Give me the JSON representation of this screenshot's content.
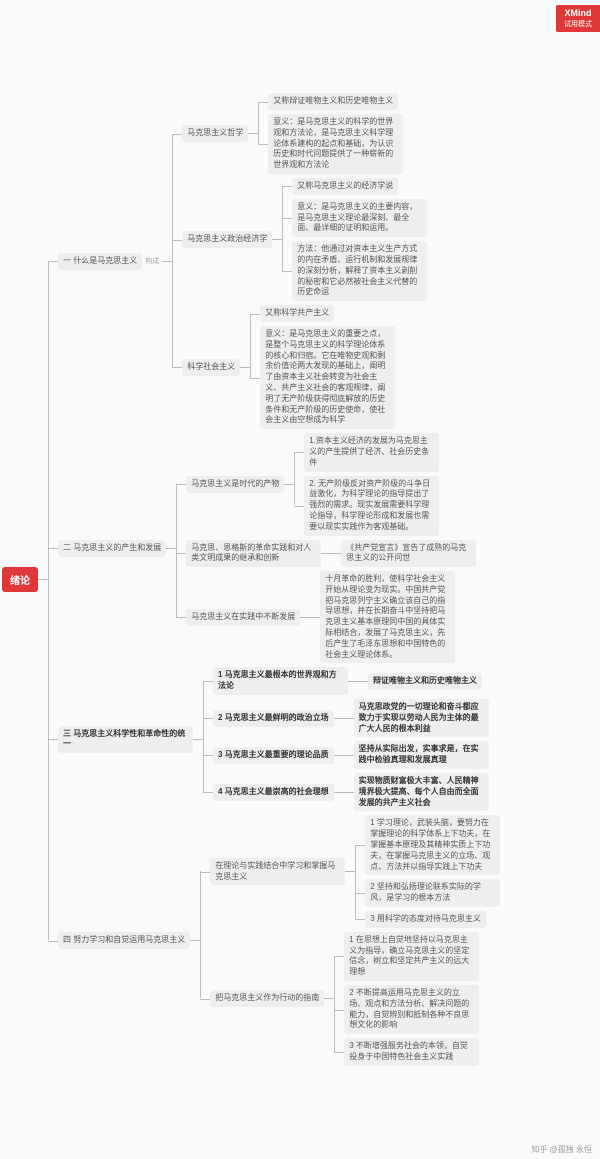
{
  "badge": {
    "title": "XMind",
    "sub": "试用模式"
  },
  "watermark": "知乎 @孤独 永恒",
  "root": "绪论",
  "t": {
    "s1": "一 什么是马克思主义",
    "s1tag": "构成",
    "s1a": "马克思主义哲学",
    "s1a1": "又称辩证唯物主义和历史唯物主义",
    "s1a2": "意义：是马克思主义的科学的世界观和方法论，是马克思主义科学理论体系建构的起点和基础，为认识历史和时代问题提供了一种崭新的世界观和方法论",
    "s1b": "马克思主义政治经济学",
    "s1b1": "又称马克思主义的经济学说",
    "s1b2": "意义：是马克思主义的主要内容，是马克思主义理论最深刻、最全面、最详细的证明和运用。",
    "s1b3": "方法：他通过对资本主义生产方式的内在矛盾、运行机制和发展规律的深刻分析，解释了资本主义剥削的秘密和它必然被社会主义代替的历史命运",
    "s1c": "科学社会主义",
    "s1c1": "又称科学共产主义",
    "s1c2": "意义：是马克思主义的重要之点，是整个马克思主义的科学理论体系的核心和归宿。它在唯物史观和剩余价值论两大发现的基础上，阐明了由资本主义社会转变为社会主义、共产主义社会的客观规律，阐明了无产阶级获得彻底解放的历史条件和无产阶级的历史使命，使社会主义由空想成为科学",
    "s2": "二 马克思主义的产生和发展",
    "s2a": "马克思主义是时代的产物",
    "s2a1": "1.资本主义经济的发展为马克思主义的产生提供了经济、社会历史条件",
    "s2a2": "2. 无产阶级反对资产阶级的斗争日益激化，为科学理论的指导提出了强烈的需求。现实发展需要科学理论指导，科学理论形成和发展也需要以现实实践作为客观基础。",
    "s2b": "马克思、恩格斯的革命实践和对人类文明成果的继承和创新",
    "s2b1": "《共产党宣言》宣告了成熟的马克思主义的公开问世",
    "s2c": "马克思主义在实践中不断发展",
    "s2c1": "十月革命的胜利，使科学社会主义开始从理论变为现实。中国共产党把马克思列宁主义确立该自己的指导思想，并在长期奋斗中坚持把马克思主义基本原理同中国的具体实际相结合，发展了马克思主义，先后产生了毛泽东思想和中国特色的社会主义理论体系。",
    "s3": "三 马克思主义科学性和革命性的统一",
    "s3a": "1 马克思主义最根本的世界观和方法论",
    "s3a1": "辩证唯物主义和历史唯物主义",
    "s3b": "2 马克思主义最鲜明的政治立场",
    "s3b1": "马克思政党的一切理论和奋斗都应致力于实现以劳动人民为主体的最广大人民的根本利益",
    "s3c": "3 马克思主义最重要的理论品质",
    "s3c1": "坚持从实际出发，实事求是，在实践中检验真理和发展真理",
    "s3d": "4 马克思主义最崇高的社会理想",
    "s3d1": "实现物质财富极大丰富、人民精神境界极大提高、每个人自由而全面发展的共产主义社会",
    "s4": "四 努力学习和自觉运用马克思主义",
    "s4a": "在理论与实践结合中学习和掌握马克思主义",
    "s4a1": "1 学习理论，武装头脑，要努力在掌握理论的科学体系上下功夫，在掌握基本原理及其精神实质上下功夫，在掌握马克思主义的立场、观点、方法并以指导实践上下功夫",
    "s4a2": "2 坚持和弘扬理论联系实际的学风，是学习的根本方法",
    "s4a3": "3 用科学的态度对待马克思主义",
    "s4b": "把马克思主义作为行动的指南",
    "s4b1": "1 在思想上自觉地坚持以马克思主义为指导，确立马克思主义的坚定信念，树立和坚定共产主义的远大理想",
    "s4b2": "2 不断提高运用马克思主义的立场、观点和方法分析、解决问题的能力，自觉辨别和抵制各种不良思想文化的影响",
    "s4b3": "3 不断增强服务社会的本领，自觉投身于中国特色社会主义实践"
  },
  "colors": {
    "accent": "#e03838",
    "box": "#eeeeee",
    "line": "#b8bcc2",
    "bg": "#fafafa"
  }
}
